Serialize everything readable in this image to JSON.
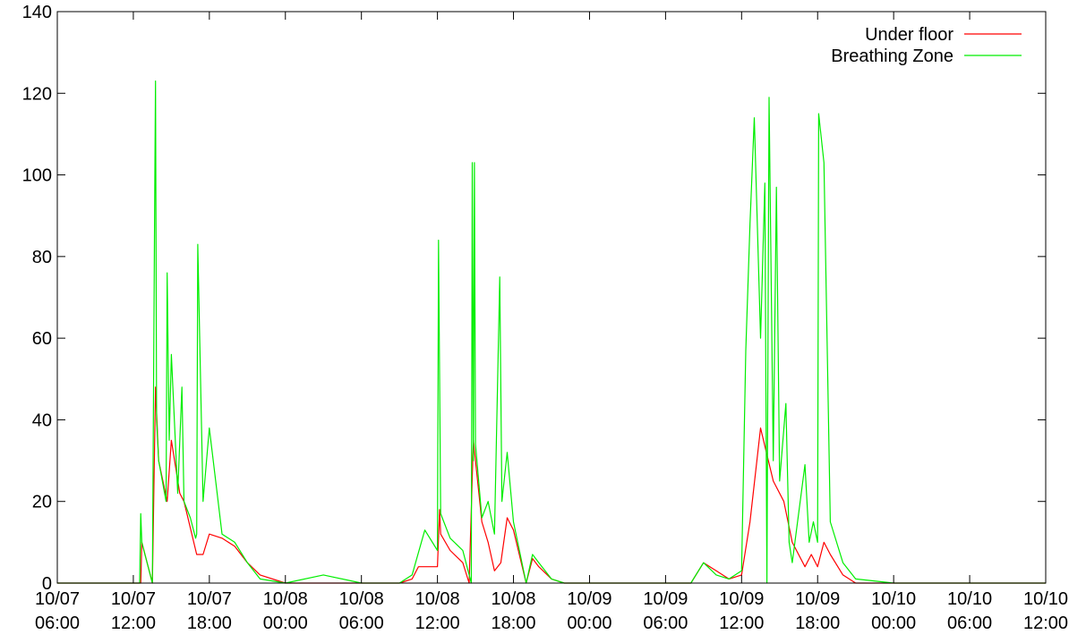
{
  "chart_data": {
    "type": "line",
    "title": "",
    "xlabel": "",
    "ylabel": "",
    "ylim": [
      0,
      140
    ],
    "xlim": [
      "2000-10-07 06:00",
      "2000-10-10 12:00"
    ],
    "y_ticks": [
      "0",
      "20",
      "40",
      "60",
      "80",
      "100",
      "120",
      "140"
    ],
    "x_ticks": [
      {
        "line1": "10/07",
        "line2": "06:00"
      },
      {
        "line1": "10/07",
        "line2": "12:00"
      },
      {
        "line1": "10/07",
        "line2": "18:00"
      },
      {
        "line1": "10/08",
        "line2": "00:00"
      },
      {
        "line1": "10/08",
        "line2": "06:00"
      },
      {
        "line1": "10/08",
        "line2": "12:00"
      },
      {
        "line1": "10/08",
        "line2": "18:00"
      },
      {
        "line1": "10/09",
        "line2": "00:00"
      },
      {
        "line1": "10/09",
        "line2": "06:00"
      },
      {
        "line1": "10/09",
        "line2": "12:00"
      },
      {
        "line1": "10/09",
        "line2": "18:00"
      },
      {
        "line1": "10/10",
        "line2": "00:00"
      },
      {
        "line1": "10/10",
        "line2": "06:00"
      },
      {
        "line1": "10/10",
        "line2": "12:00"
      }
    ],
    "legend_position": "top-right",
    "grid": false,
    "series": [
      {
        "name": "Under floor",
        "color": "#ff0000",
        "x": [
          "10/07 06:00",
          "10/07 12:00",
          "10/07 12:35",
          "10/07 12:40",
          "10/07 13:30",
          "10/07 13:45",
          "10/07 14:00",
          "10/07 14:40",
          "10/07 15:00",
          "10/07 15:40",
          "10/07 16:00",
          "10/07 17:00",
          "10/07 17:30",
          "10/07 18:00",
          "10/07 19:00",
          "10/07 20:00",
          "10/07 21:00",
          "10/07 22:00",
          "10/08 00:00",
          "10/08 06:00",
          "10/08 09:00",
          "10/08 10:00",
          "10/08 10:30",
          "10/08 12:00",
          "10/08 12:10",
          "10/08 12:15",
          "10/08 13:00",
          "10/08 14:00",
          "10/08 14:30",
          "10/08 14:50",
          "10/08 15:30",
          "10/08 16:00",
          "10/08 16:30",
          "10/08 17:00",
          "10/08 17:30",
          "10/08 18:00",
          "10/08 19:00",
          "10/08 19:30",
          "10/08 20:00",
          "10/08 21:00",
          "10/08 22:00",
          "10/09 00:00",
          "10/09 06:00",
          "10/09 08:00",
          "10/09 09:00",
          "10/09 10:00",
          "10/09 11:00",
          "10/09 12:00",
          "10/09 12:40",
          "10/09 13:30",
          "10/09 14:30",
          "10/09 15:20",
          "10/09 16:00",
          "10/09 17:00",
          "10/09 17:30",
          "10/09 18:00",
          "10/09 18:30",
          "10/09 19:00",
          "10/09 20:00",
          "10/09 21:00",
          "10/10 00:00",
          "10/10 12:00"
        ],
        "values": [
          0,
          0,
          0,
          10,
          0,
          48,
          30,
          20,
          35,
          22,
          20,
          7,
          7,
          12,
          11,
          9,
          5,
          2,
          0,
          0,
          0,
          1,
          4,
          4,
          18,
          12,
          8,
          5,
          0,
          35,
          15,
          10,
          3,
          5,
          16,
          13,
          0,
          6,
          4,
          1,
          0,
          0,
          0,
          0,
          5,
          3,
          1,
          2,
          15,
          38,
          25,
          20,
          10,
          4,
          7,
          4,
          10,
          7,
          2,
          0,
          0,
          0
        ]
      },
      {
        "name": "Breathing Zone",
        "color": "#00ee00",
        "x": [
          "10/07 06:00",
          "10/07 12:00",
          "10/07 12:30",
          "10/07 12:35",
          "10/07 12:40",
          "10/07 13:30",
          "10/07 13:40",
          "10/07 13:45",
          "10/07 13:50",
          "10/07 14:00",
          "10/07 14:35",
          "10/07 14:40",
          "10/07 14:50",
          "10/07 15:00",
          "10/07 15:30",
          "10/07 15:50",
          "10/07 16:00",
          "10/07 16:30",
          "10/07 16:55",
          "10/07 17:00",
          "10/07 17:05",
          "10/07 17:30",
          "10/07 18:00",
          "10/07 19:00",
          "10/07 20:00",
          "10/07 21:00",
          "10/07 22:00",
          "10/08 00:00",
          "10/08 03:00",
          "10/08 06:00",
          "10/08 09:00",
          "10/08 10:00",
          "10/08 11:00",
          "10/08 12:00",
          "10/08 12:05",
          "10/08 12:15",
          "10/08 13:00",
          "10/08 14:00",
          "10/08 14:40",
          "10/08 14:45",
          "10/08 14:50",
          "10/08 14:55",
          "10/08 15:00",
          "10/08 15:30",
          "10/08 16:00",
          "10/08 16:30",
          "10/08 16:55",
          "10/08 17:05",
          "10/08 17:30",
          "10/08 18:00",
          "10/08 19:00",
          "10/08 19:30",
          "10/08 20:00",
          "10/08 21:00",
          "10/08 22:00",
          "10/09 00:00",
          "10/09 06:00",
          "10/09 08:00",
          "10/09 09:00",
          "10/09 10:00",
          "10/09 11:00",
          "10/09 12:00",
          "10/09 12:20",
          "10/09 12:40",
          "10/09 13:00",
          "10/09 13:30",
          "10/09 13:50",
          "10/09 14:00",
          "10/09 14:10",
          "10/09 14:30",
          "10/09 14:45",
          "10/09 15:00",
          "10/09 15:30",
          "10/09 15:45",
          "10/09 16:00",
          "10/09 17:00",
          "10/09 17:20",
          "10/09 17:40",
          "10/09 18:00",
          "10/09 18:05",
          "10/09 18:30",
          "10/09 19:00",
          "10/09 20:00",
          "10/09 21:00",
          "10/10 00:00",
          "10/10 12:00"
        ],
        "values": [
          0,
          0,
          0,
          17,
          10,
          0,
          84,
          123,
          40,
          30,
          20,
          76,
          35,
          56,
          22,
          48,
          20,
          16,
          11,
          12,
          83,
          20,
          38,
          12,
          10,
          5,
          1,
          0,
          2,
          0,
          0,
          2,
          13,
          8,
          84,
          17,
          11,
          8,
          0,
          103,
          30,
          103,
          34,
          16,
          20,
          12,
          75,
          20,
          32,
          15,
          0,
          7,
          5,
          1,
          0,
          0,
          0,
          0,
          5,
          2,
          1,
          3,
          57,
          88,
          114,
          60,
          98,
          0,
          119,
          30,
          97,
          25,
          44,
          10,
          5,
          29,
          10,
          15,
          10,
          115,
          103,
          15,
          5,
          1,
          0,
          0
        ]
      }
    ]
  }
}
